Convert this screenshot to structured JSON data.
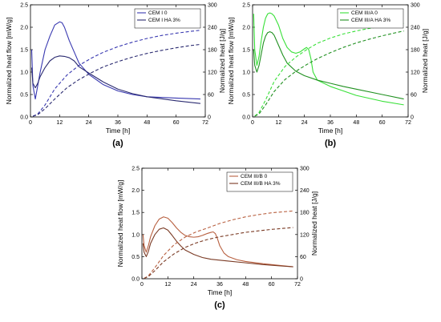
{
  "chart_data": [
    {
      "type": "line",
      "panel_label": "(a)",
      "xlabel": "Time [h]",
      "ylabel": "Normalized heat flow [mW/g]",
      "y2label": "Normalized heat [J/g]",
      "xlim": [
        0,
        72
      ],
      "ylim": [
        0,
        2.5
      ],
      "y2lim": [
        0,
        300
      ],
      "xticks": [
        0,
        12,
        24,
        36,
        48,
        60,
        72
      ],
      "yticks": [
        0.0,
        0.5,
        1.0,
        1.5,
        2.0,
        2.5
      ],
      "y2ticks": [
        0,
        60,
        120,
        180,
        240,
        300
      ],
      "legend_position": "top-right",
      "colors": [
        "#3838b0",
        "#2a2a70"
      ],
      "series": [
        {
          "name": "CEM I 0",
          "axis": "left",
          "style": "solid",
          "x": [
            0.5,
            1,
            2,
            3,
            4,
            6,
            8,
            10,
            12,
            13,
            14,
            16,
            18,
            20,
            24,
            30,
            36,
            42,
            48,
            60,
            70
          ],
          "y": [
            1.5,
            0.7,
            0.4,
            0.7,
            1.0,
            1.5,
            1.8,
            2.05,
            2.12,
            2.1,
            2.0,
            1.7,
            1.45,
            1.2,
            0.95,
            0.72,
            0.58,
            0.5,
            0.45,
            0.42,
            0.4
          ]
        },
        {
          "name": "CEM I HA 3%",
          "axis": "left",
          "style": "solid",
          "x": [
            0.5,
            1,
            2,
            3,
            4,
            6,
            8,
            10,
            12,
            14,
            16,
            18,
            20,
            24,
            30,
            36,
            42,
            48,
            60,
            70
          ],
          "y": [
            1.1,
            0.75,
            0.65,
            0.75,
            0.9,
            1.1,
            1.25,
            1.33,
            1.36,
            1.35,
            1.32,
            1.25,
            1.12,
            0.98,
            0.78,
            0.62,
            0.52,
            0.45,
            0.36,
            0.3
          ]
        },
        {
          "name": "",
          "axis": "right",
          "style": "dashed",
          "x": [
            1,
            3,
            6,
            10,
            15,
            20,
            25,
            30,
            36,
            42,
            48,
            54,
            60,
            66,
            70
          ],
          "y": [
            2,
            8,
            32,
            75,
            112,
            138,
            157,
            173,
            188,
            200,
            210,
            218,
            224,
            229,
            232
          ]
        },
        {
          "name": "",
          "axis": "right",
          "style": "dashed",
          "x": [
            1,
            3,
            6,
            10,
            15,
            20,
            25,
            30,
            36,
            42,
            48,
            54,
            60,
            66,
            70
          ],
          "y": [
            2,
            6,
            22,
            48,
            78,
            100,
            118,
            134,
            148,
            160,
            170,
            178,
            185,
            191,
            194
          ]
        }
      ]
    },
    {
      "type": "line",
      "panel_label": "(b)",
      "xlabel": "Time [h]",
      "ylabel": "Normalized heat flow [mW/g]",
      "y2label": "Normalized heat [J/g]",
      "xlim": [
        0,
        72
      ],
      "ylim": [
        0,
        2.5
      ],
      "y2lim": [
        0,
        300
      ],
      "xticks": [
        0,
        12,
        24,
        36,
        48,
        60,
        72
      ],
      "yticks": [
        0.0,
        0.5,
        1.0,
        1.5,
        2.0,
        2.5
      ],
      "y2ticks": [
        0,
        60,
        120,
        180,
        240,
        300
      ],
      "legend_position": "top-right",
      "colors": [
        "#38e038",
        "#209020"
      ],
      "series": [
        {
          "name": "CEM III/A 0",
          "axis": "left",
          "style": "solid",
          "x": [
            0.5,
            1,
            2,
            3,
            4,
            5,
            6,
            7,
            8,
            9,
            10,
            12,
            14,
            16,
            18,
            20,
            22,
            24,
            25,
            26,
            27,
            28,
            30,
            36,
            42,
            48,
            60,
            70
          ],
          "y": [
            2.3,
            1.5,
            1.15,
            1.35,
            1.7,
            2.0,
            2.2,
            2.3,
            2.32,
            2.3,
            2.25,
            2.05,
            1.75,
            1.55,
            1.45,
            1.42,
            1.45,
            1.52,
            1.55,
            1.5,
            1.3,
            1.0,
            0.82,
            0.68,
            0.58,
            0.48,
            0.35,
            0.27
          ]
        },
        {
          "name": "CEM III/A HA 3%",
          "axis": "left",
          "style": "solid",
          "x": [
            0.5,
            1,
            2,
            3,
            4,
            5,
            6,
            7,
            8,
            9,
            10,
            12,
            14,
            16,
            20,
            24,
            30,
            36,
            42,
            48,
            60,
            70
          ],
          "y": [
            1.5,
            1.15,
            1.0,
            1.15,
            1.4,
            1.65,
            1.8,
            1.88,
            1.9,
            1.88,
            1.82,
            1.6,
            1.38,
            1.2,
            1.02,
            0.92,
            0.82,
            0.75,
            0.68,
            0.62,
            0.5,
            0.4
          ]
        },
        {
          "name": "",
          "axis": "right",
          "style": "dashed",
          "x": [
            1,
            3,
            6,
            10,
            15,
            20,
            25,
            30,
            36,
            42,
            48,
            54,
            60,
            66,
            70
          ],
          "y": [
            2,
            12,
            45,
            95,
            135,
            160,
            180,
            197,
            211,
            222,
            230,
            237,
            243,
            248,
            250
          ]
        },
        {
          "name": "",
          "axis": "right",
          "style": "dashed",
          "x": [
            1,
            3,
            6,
            10,
            15,
            20,
            25,
            30,
            36,
            42,
            48,
            54,
            60,
            66,
            70
          ],
          "y": [
            2,
            8,
            32,
            68,
            100,
            122,
            140,
            156,
            172,
            186,
            198,
            208,
            217,
            225,
            230
          ]
        }
      ]
    },
    {
      "type": "line",
      "panel_label": "(c)",
      "xlabel": "Time [h]",
      "ylabel": "Normalized heat flow [mW/g]",
      "y2label": "Normalized heat [J/g]",
      "xlim": [
        0,
        72
      ],
      "ylim": [
        0,
        2.5
      ],
      "y2lim": [
        0,
        300
      ],
      "xticks": [
        0,
        12,
        24,
        36,
        48,
        60,
        72
      ],
      "yticks": [
        0.0,
        0.5,
        1.0,
        1.5,
        2.0,
        2.5
      ],
      "y2ticks": [
        0,
        60,
        120,
        180,
        240,
        300
      ],
      "legend_position": "top-right",
      "colors": [
        "#b86040",
        "#7a3a24"
      ],
      "series": [
        {
          "name": "CEM III/B 0",
          "axis": "left",
          "style": "solid",
          "x": [
            0.5,
            1,
            2,
            3,
            4,
            6,
            8,
            10,
            12,
            14,
            16,
            18,
            20,
            22,
            24,
            26,
            28,
            30,
            32,
            33,
            34,
            35,
            36,
            38,
            40,
            44,
            48,
            56,
            64,
            70
          ],
          "y": [
            1.0,
            0.75,
            0.6,
            0.75,
            0.95,
            1.2,
            1.35,
            1.4,
            1.37,
            1.27,
            1.15,
            1.05,
            0.98,
            0.95,
            0.94,
            0.95,
            0.98,
            1.02,
            1.05,
            1.06,
            1.02,
            0.9,
            0.75,
            0.58,
            0.5,
            0.43,
            0.39,
            0.34,
            0.3,
            0.27
          ]
        },
        {
          "name": "CEM III/B HA 3%",
          "axis": "left",
          "style": "solid",
          "x": [
            0.5,
            1,
            2,
            3,
            4,
            6,
            8,
            10,
            12,
            14,
            16,
            18,
            20,
            24,
            28,
            32,
            36,
            40,
            48,
            56,
            64,
            70
          ],
          "y": [
            0.8,
            0.6,
            0.5,
            0.62,
            0.8,
            1.0,
            1.12,
            1.15,
            1.1,
            0.98,
            0.85,
            0.74,
            0.65,
            0.55,
            0.48,
            0.44,
            0.42,
            0.4,
            0.36,
            0.32,
            0.29,
            0.27
          ]
        },
        {
          "name": "",
          "axis": "right",
          "style": "dashed",
          "x": [
            1,
            3,
            6,
            10,
            15,
            20,
            25,
            30,
            36,
            42,
            48,
            54,
            60,
            66,
            70
          ],
          "y": [
            1,
            8,
            30,
            63,
            93,
            113,
            127,
            137,
            150,
            160,
            168,
            174,
            179,
            182,
            184
          ]
        },
        {
          "name": "",
          "axis": "right",
          "style": "dashed",
          "x": [
            1,
            3,
            6,
            10,
            15,
            20,
            25,
            30,
            36,
            42,
            48,
            54,
            60,
            66,
            70
          ],
          "y": [
            1,
            6,
            22,
            46,
            68,
            85,
            97,
            106,
            114,
            120,
            126,
            130,
            134,
            137,
            139
          ]
        }
      ]
    }
  ]
}
